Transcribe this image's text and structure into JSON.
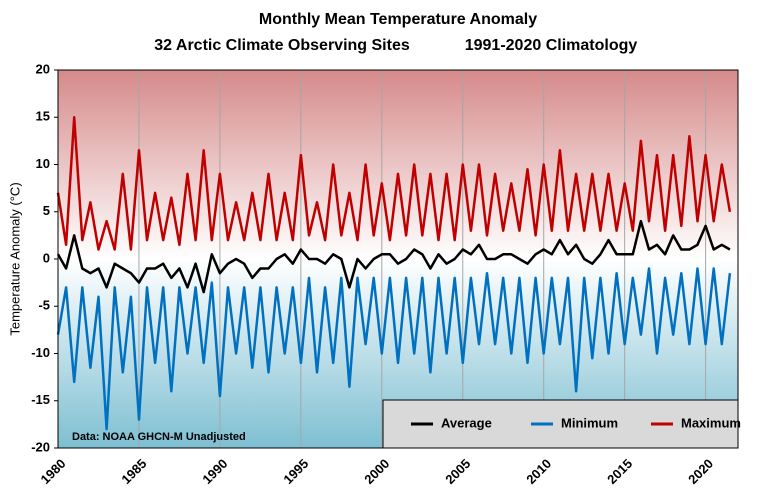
{
  "chart_data": {
    "type": "line",
    "title": "Monthly Mean Temperature Anomaly",
    "subtitle_left": "32 Arctic Climate Observing Sites",
    "subtitle_right": "1991-2020 Climatology",
    "y_label": "Temperature Anomaly (°C)",
    "annotation": "Data: NOAA GHCN-M Unadjusted",
    "x": [
      1980,
      1980.5,
      1981,
      1981.5,
      1982,
      1982.5,
      1983,
      1983.5,
      1984,
      1984.5,
      1985,
      1985.5,
      1986,
      1986.5,
      1987,
      1987.5,
      1988,
      1988.5,
      1989,
      1989.5,
      1990,
      1990.5,
      1991,
      1991.5,
      1992,
      1992.5,
      1993,
      1993.5,
      1994,
      1994.5,
      1995,
      1995.5,
      1996,
      1996.5,
      1997,
      1997.5,
      1998,
      1998.5,
      1999,
      1999.5,
      2000,
      2000.5,
      2001,
      2001.5,
      2002,
      2002.5,
      2003,
      2003.5,
      2004,
      2004.5,
      2005,
      2005.5,
      2006,
      2006.5,
      2007,
      2007.5,
      2008,
      2008.5,
      2009,
      2009.5,
      2010,
      2010.5,
      2011,
      2011.5,
      2012,
      2012.5,
      2013,
      2013.5,
      2014,
      2014.5,
      2015,
      2015.5,
      2016,
      2016.5,
      2017,
      2017.5,
      2018,
      2018.5,
      2019,
      2019.5,
      2020,
      2020.5,
      2021,
      2021.5
    ],
    "series": [
      {
        "name": "Average",
        "color": "#000000",
        "values": [
          0.5,
          -1,
          2.5,
          -1,
          -1.5,
          -1,
          -3,
          -0.5,
          -1,
          -1.5,
          -2.5,
          -1,
          -1,
          -0.5,
          -2,
          -1,
          -3,
          -0.5,
          -3.5,
          0.5,
          -1.5,
          -0.5,
          0,
          -0.5,
          -2,
          -1,
          -1,
          0,
          0.5,
          -0.5,
          1,
          0,
          0,
          -0.5,
          0.5,
          0,
          -3,
          0,
          -1,
          0,
          0.5,
          0.5,
          -0.5,
          0,
          1,
          0.5,
          -1,
          0.5,
          -0.5,
          0,
          1,
          0.5,
          1.5,
          0,
          0,
          0.5,
          0.5,
          0,
          -0.5,
          0.5,
          1,
          0.5,
          2,
          0.5,
          1.5,
          0,
          -0.5,
          0.5,
          2,
          0.5,
          0.5,
          0.5,
          4,
          1,
          1.5,
          0.5,
          2.5,
          1,
          1,
          1.5,
          3.5,
          1,
          1.5,
          1
        ]
      },
      {
        "name": "Minimum",
        "color": "#0070c0",
        "values": [
          -8,
          -3,
          -13,
          -3,
          -11.5,
          -4,
          -18,
          -3,
          -12,
          -4,
          -17,
          -3,
          -11,
          -3,
          -14,
          -3,
          -10,
          -3,
          -11,
          -2.5,
          -14.5,
          -3,
          -10,
          -3,
          -11.5,
          -3,
          -12,
          -3,
          -10,
          -3,
          -11,
          -2,
          -12,
          -3,
          -11,
          -2,
          -13.5,
          -2,
          -9,
          -2,
          -10,
          -2,
          -11,
          -2,
          -10,
          -2,
          -12,
          -2,
          -10,
          -2,
          -11,
          -2,
          -9,
          -1.5,
          -9,
          -2,
          -10,
          -2,
          -11,
          -2,
          -10,
          -2,
          -9,
          -2,
          -14,
          -2,
          -10.5,
          -2,
          -10,
          -1.5,
          -9,
          -2,
          -8,
          -1,
          -10,
          -2,
          -8,
          -1.5,
          -9,
          -1,
          -9,
          -1,
          -9,
          -1.5
        ]
      },
      {
        "name": "Maximum",
        "color": "#c00000",
        "values": [
          7,
          1.5,
          15,
          2,
          6,
          1,
          4,
          1,
          9,
          1,
          11.5,
          2,
          7,
          2,
          6.5,
          1.5,
          9,
          2,
          11.5,
          2,
          9,
          2,
          6,
          2,
          7,
          2,
          9,
          2,
          7,
          2,
          11,
          2.5,
          6,
          2,
          10,
          2.5,
          7,
          2,
          10,
          2.5,
          8,
          2,
          9,
          2.5,
          10,
          2.5,
          9,
          2,
          9,
          2,
          10,
          3,
          10,
          2.5,
          9,
          3,
          8,
          3,
          9.5,
          2.5,
          10,
          3,
          11.5,
          3,
          9,
          3,
          9,
          3,
          9,
          3,
          8,
          3,
          12.5,
          4,
          11,
          3,
          11,
          3.5,
          13,
          4,
          11,
          4,
          10,
          5
        ]
      }
    ],
    "xlim": [
      1980,
      2022
    ],
    "xticks": [
      1980,
      1985,
      1990,
      1995,
      2000,
      2005,
      2010,
      2015,
      2020
    ],
    "ylim": [
      -20,
      20
    ],
    "yticks": [
      -20,
      -15,
      -10,
      -5,
      0,
      5,
      10,
      15,
      20
    ],
    "grid": true,
    "legend": "bottom-right"
  }
}
